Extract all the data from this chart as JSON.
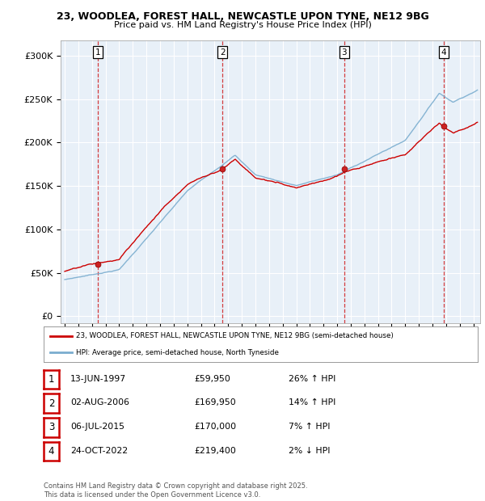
{
  "title_line1": "23, WOODLEA, FOREST HALL, NEWCASTLE UPON TYNE, NE12 9BG",
  "title_line2": "Price paid vs. HM Land Registry's House Price Index (HPI)",
  "yticks": [
    0,
    50000,
    100000,
    150000,
    200000,
    250000,
    300000
  ],
  "ytick_labels": [
    "£0",
    "£50K",
    "£100K",
    "£150K",
    "£200K",
    "£250K",
    "£300K"
  ],
  "ylim": [
    -8000,
    318000
  ],
  "xlim_start": 1994.7,
  "xlim_end": 2025.5,
  "hpi_color": "#7aadcf",
  "price_color": "#cc0000",
  "dashed_color": "#cc0000",
  "plot_bg_color": "#e8f0f8",
  "background_color": "#ffffff",
  "grid_color": "#ffffff",
  "sale_dates_num": [
    1997.45,
    2006.58,
    2015.51,
    2022.81
  ],
  "sale_prices": [
    59950,
    169950,
    170000,
    219400
  ],
  "sale_labels": [
    "1",
    "2",
    "3",
    "4"
  ],
  "legend_price_label": "23, WOODLEA, FOREST HALL, NEWCASTLE UPON TYNE, NE12 9BG (semi-detached house)",
  "legend_hpi_label": "HPI: Average price, semi-detached house, North Tyneside",
  "table_rows": [
    [
      "1",
      "13-JUN-1997",
      "£59,950",
      "26% ↑ HPI"
    ],
    [
      "2",
      "02-AUG-2006",
      "£169,950",
      "14% ↑ HPI"
    ],
    [
      "3",
      "06-JUL-2015",
      "£170,000",
      "7% ↑ HPI"
    ],
    [
      "4",
      "24-OCT-2022",
      "£219,400",
      "2% ↓ HPI"
    ]
  ],
  "footnote": "Contains HM Land Registry data © Crown copyright and database right 2025.\nThis data is licensed under the Open Government Licence v3.0."
}
